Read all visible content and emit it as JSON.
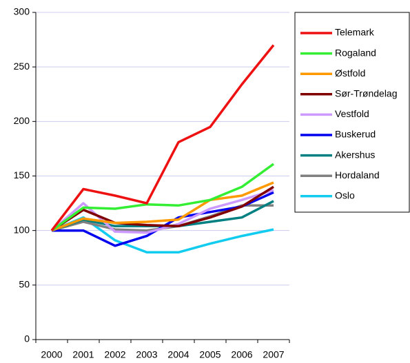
{
  "chart_data": {
    "type": "line",
    "categories": [
      "2000",
      "2001",
      "2002",
      "2003",
      "2004",
      "2005",
      "2006",
      "2007"
    ],
    "series": [
      {
        "name": "Telemark",
        "color": "#ee1111",
        "values": [
          100,
          138,
          132,
          125,
          181,
          195,
          234,
          270
        ]
      },
      {
        "name": "Rogaland",
        "color": "#33ee33",
        "values": [
          100,
          121,
          120,
          124,
          123,
          128,
          140,
          161
        ]
      },
      {
        "name": "Østfold",
        "color": "#ff9900",
        "values": [
          100,
          111,
          107,
          108,
          110,
          128,
          132,
          144
        ]
      },
      {
        "name": "Sør-Trøndelag",
        "color": "#800000",
        "values": [
          100,
          119,
          107,
          105,
          104,
          112,
          122,
          140
        ]
      },
      {
        "name": "Vestfold",
        "color": "#cc99ff",
        "values": [
          100,
          125,
          99,
          98,
          106,
          120,
          128,
          137
        ]
      },
      {
        "name": "Buskerud",
        "color": "#0000ee",
        "values": [
          100,
          100,
          86,
          95,
          112,
          117,
          122,
          135
        ]
      },
      {
        "name": "Akershus",
        "color": "#008080",
        "values": [
          100,
          110,
          104,
          104,
          104,
          108,
          112,
          127
        ]
      },
      {
        "name": "Hordaland",
        "color": "#808080",
        "values": [
          100,
          108,
          101,
          100,
          104,
          113,
          123,
          123
        ]
      },
      {
        "name": "Oslo",
        "color": "#11ccee",
        "values": [
          100,
          112,
          91,
          80,
          80,
          88,
          95,
          101
        ]
      }
    ],
    "ylim": [
      0,
      300
    ],
    "yticks": [
      0,
      50,
      100,
      150,
      200,
      250,
      300
    ],
    "grid": true,
    "legend": "right"
  }
}
